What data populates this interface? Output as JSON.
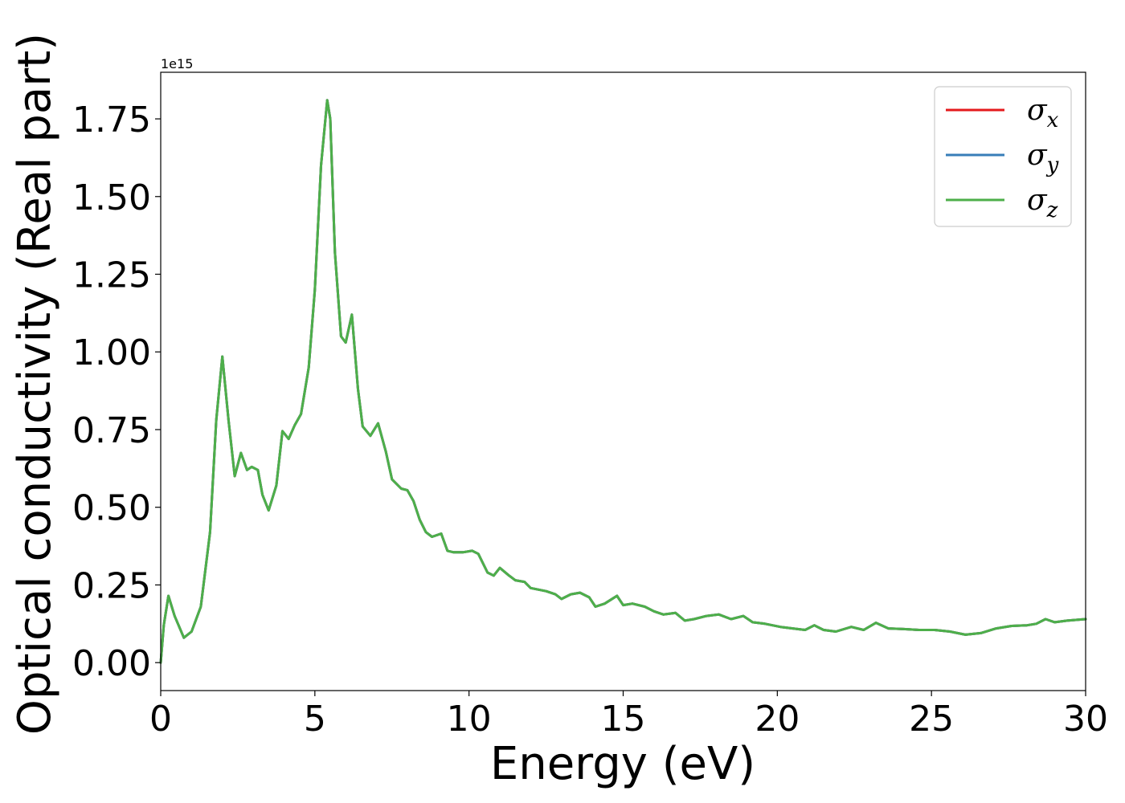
{
  "chart_data": {
    "type": "line",
    "xlabel": "Energy (eV)",
    "ylabel": "Optical conductivity (Real part)",
    "y_offset_label": "1e15",
    "y_scale": 1000000000000000.0,
    "xlim": [
      0,
      30
    ],
    "ylim": [
      -0.09,
      1.9
    ],
    "xticks": [
      0,
      5,
      10,
      15,
      20,
      25,
      30
    ],
    "xtick_labels": [
      "0",
      "5",
      "10",
      "15",
      "20",
      "25",
      "30"
    ],
    "yticks": [
      0.0,
      0.25,
      0.5,
      0.75,
      1.0,
      1.25,
      1.5,
      1.75
    ],
    "ytick_labels": [
      "0.00",
      "0.25",
      "0.50",
      "0.75",
      "1.00",
      "1.25",
      "1.50",
      "1.75"
    ],
    "grid": false,
    "legend_position": "top-right",
    "series": [
      {
        "name": "σ",
        "subscript": "x",
        "color": "#e41a1c"
      },
      {
        "name": "σ",
        "subscript": "y",
        "color": "#377eb8"
      },
      {
        "name": "σ",
        "subscript": "z",
        "color": "#4daf4a"
      }
    ],
    "shared_data": {
      "x": [
        0,
        0.1,
        0.25,
        0.45,
        0.75,
        1.0,
        1.3,
        1.6,
        1.8,
        2.0,
        2.2,
        2.4,
        2.6,
        2.8,
        2.95,
        3.15,
        3.3,
        3.5,
        3.75,
        3.95,
        4.15,
        4.35,
        4.55,
        4.8,
        5.0,
        5.2,
        5.4,
        5.5,
        5.65,
        5.85,
        6.0,
        6.2,
        6.4,
        6.55,
        6.8,
        7.05,
        7.3,
        7.5,
        7.8,
        8.0,
        8.2,
        8.4,
        8.6,
        8.8,
        9.1,
        9.3,
        9.5,
        9.8,
        10.1,
        10.3,
        10.6,
        10.8,
        11.0,
        11.3,
        11.5,
        11.8,
        12.0,
        12.5,
        12.8,
        13.0,
        13.3,
        13.6,
        13.9,
        14.1,
        14.4,
        14.8,
        15.0,
        15.3,
        15.7,
        16.0,
        16.3,
        16.7,
        17.0,
        17.3,
        17.7,
        18.1,
        18.5,
        18.9,
        19.2,
        19.6,
        20.1,
        20.5,
        20.9,
        21.2,
        21.5,
        21.9,
        22.4,
        22.8,
        23.2,
        23.6,
        24.1,
        24.6,
        25.1,
        25.6,
        26.1,
        26.6,
        27.1,
        27.6,
        28.1,
        28.4,
        28.7,
        29.0,
        29.4,
        30.0
      ],
      "y": [
        0.0,
        0.12,
        0.215,
        0.15,
        0.08,
        0.1,
        0.18,
        0.42,
        0.78,
        0.985,
        0.78,
        0.6,
        0.675,
        0.62,
        0.63,
        0.62,
        0.54,
        0.49,
        0.57,
        0.745,
        0.72,
        0.765,
        0.8,
        0.95,
        1.2,
        1.6,
        1.81,
        1.75,
        1.32,
        1.05,
        1.03,
        1.12,
        0.88,
        0.76,
        0.73,
        0.77,
        0.68,
        0.59,
        0.56,
        0.555,
        0.52,
        0.46,
        0.42,
        0.405,
        0.415,
        0.36,
        0.355,
        0.355,
        0.36,
        0.35,
        0.29,
        0.28,
        0.305,
        0.28,
        0.265,
        0.26,
        0.24,
        0.23,
        0.22,
        0.205,
        0.22,
        0.225,
        0.21,
        0.18,
        0.19,
        0.215,
        0.185,
        0.19,
        0.18,
        0.165,
        0.155,
        0.16,
        0.135,
        0.14,
        0.15,
        0.155,
        0.14,
        0.15,
        0.13,
        0.125,
        0.115,
        0.11,
        0.105,
        0.12,
        0.105,
        0.1,
        0.115,
        0.105,
        0.128,
        0.11,
        0.108,
        0.105,
        0.105,
        0.1,
        0.09,
        0.095,
        0.11,
        0.118,
        0.12,
        0.125,
        0.14,
        0.13,
        0.135,
        0.14
      ]
    }
  }
}
